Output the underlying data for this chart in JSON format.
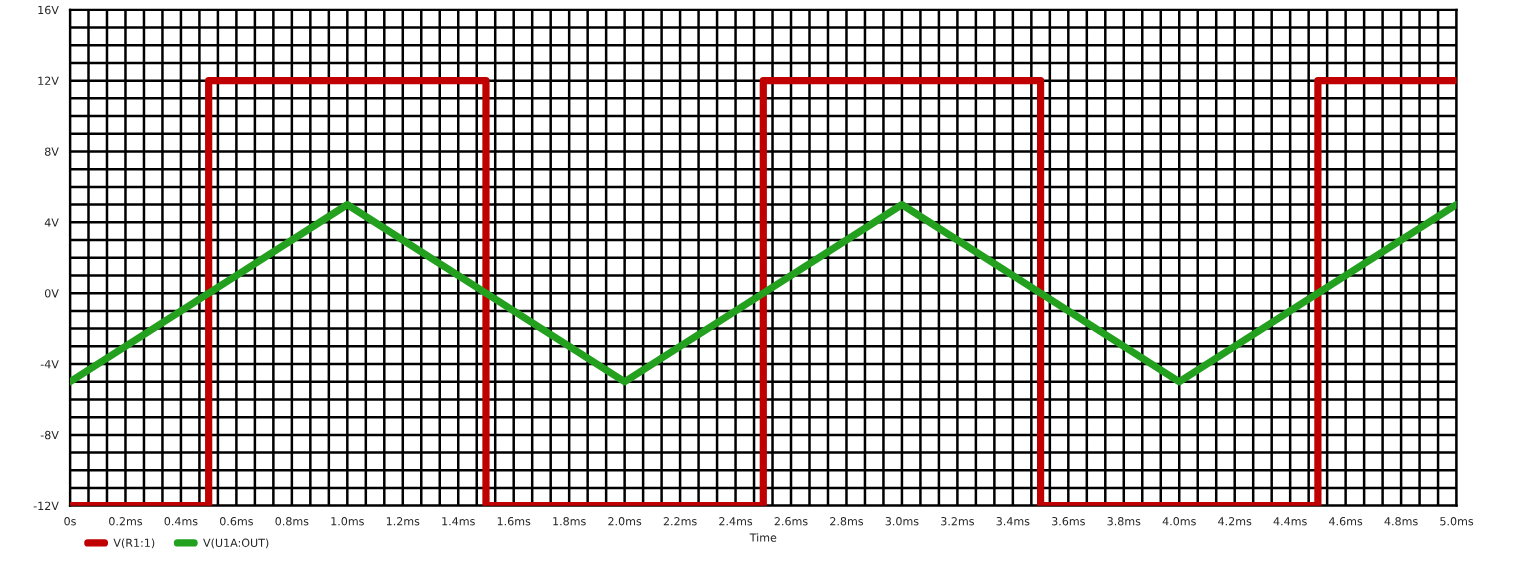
{
  "chart_data": {
    "type": "line",
    "xlabel": "Time",
    "xlim": [
      0,
      5
    ],
    "xticks": [
      {
        "value": 0,
        "label": "0s"
      },
      {
        "value": 0.2,
        "label": "0.2ms"
      },
      {
        "value": 0.4,
        "label": "0.4ms"
      },
      {
        "value": 0.6,
        "label": "0.6ms"
      },
      {
        "value": 0.8,
        "label": "0.8ms"
      },
      {
        "value": 1.0,
        "label": "1.0ms"
      },
      {
        "value": 1.2,
        "label": "1.2ms"
      },
      {
        "value": 1.4,
        "label": "1.4ms"
      },
      {
        "value": 1.6,
        "label": "1.6ms"
      },
      {
        "value": 1.8,
        "label": "1.8ms"
      },
      {
        "value": 2.0,
        "label": "2.0ms"
      },
      {
        "value": 2.2,
        "label": "2.2ms"
      },
      {
        "value": 2.4,
        "label": "2.4ms"
      },
      {
        "value": 2.6,
        "label": "2.6ms"
      },
      {
        "value": 2.8,
        "label": "2.8ms"
      },
      {
        "value": 3.0,
        "label": "3.0ms"
      },
      {
        "value": 3.2,
        "label": "3.2ms"
      },
      {
        "value": 3.4,
        "label": "3.4ms"
      },
      {
        "value": 3.6,
        "label": "3.6ms"
      },
      {
        "value": 3.8,
        "label": "3.8ms"
      },
      {
        "value": 4.0,
        "label": "4.0ms"
      },
      {
        "value": 4.2,
        "label": "4.2ms"
      },
      {
        "value": 4.4,
        "label": "4.4ms"
      },
      {
        "value": 4.6,
        "label": "4.6ms"
      },
      {
        "value": 4.8,
        "label": "4.8ms"
      },
      {
        "value": 5.0,
        "label": "5.0ms"
      }
    ],
    "ylim": [
      -12,
      16
    ],
    "yticks": [
      {
        "value": -12,
        "label": "-12V"
      },
      {
        "value": -8,
        "label": "-8V"
      },
      {
        "value": -4,
        "label": "-4V"
      },
      {
        "value": 0,
        "label": "0V"
      },
      {
        "value": 4,
        "label": "4V"
      },
      {
        "value": 8,
        "label": "8V"
      },
      {
        "value": 12,
        "label": "12V"
      },
      {
        "value": 16,
        "label": "16V"
      }
    ],
    "grid": true,
    "legend": "bottom left",
    "marker": "none",
    "line_style": "solid",
    "series": [
      {
        "name": "V(R1:1)",
        "color": "#c00000",
        "x": [
          0,
          0.5,
          0.5,
          1.5,
          1.5,
          2.5,
          2.5,
          3.5,
          3.5,
          4.5,
          4.5,
          5
        ],
        "values": [
          -12,
          -12,
          12,
          12,
          -12,
          -12,
          12,
          12,
          -12,
          -12,
          12,
          12
        ]
      },
      {
        "name": "V(U1A:OUT)",
        "color": "#22a01e",
        "x": [
          0,
          1,
          2,
          3,
          4,
          5
        ],
        "values": [
          -5,
          5,
          -5,
          5,
          -5,
          5
        ]
      }
    ]
  }
}
